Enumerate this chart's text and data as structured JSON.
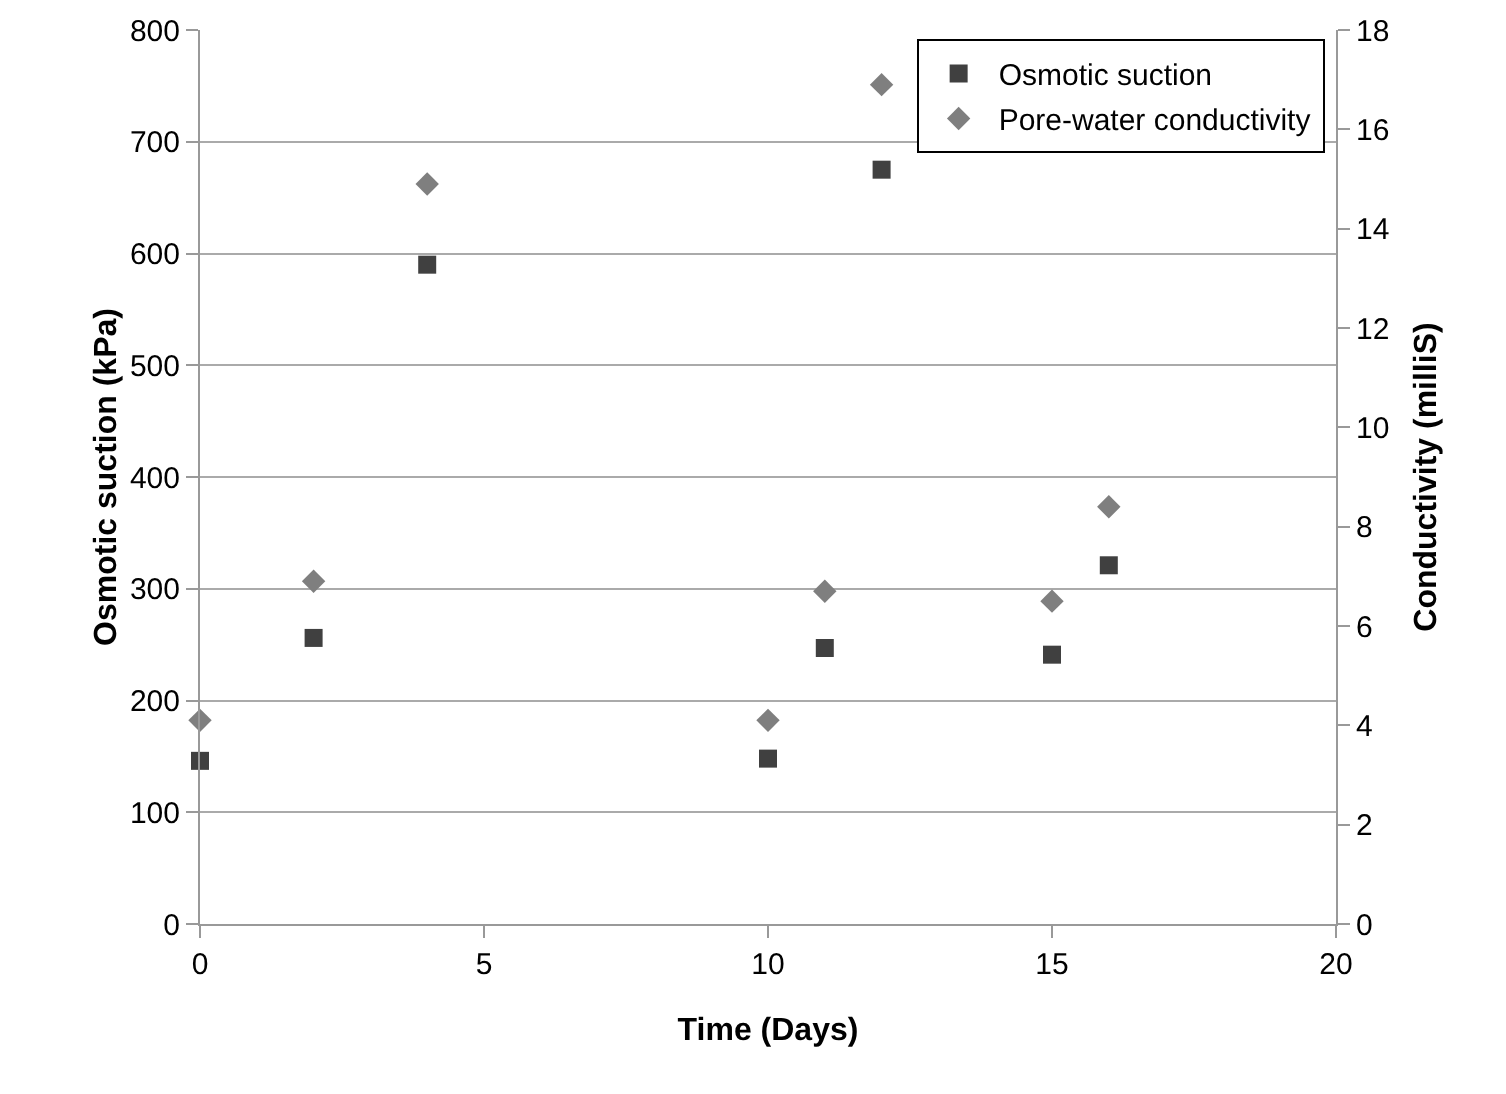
{
  "chart_data": {
    "type": "scatter",
    "xlabel": "Time (Days)",
    "ylabel": "Osmotic suction (kPa)",
    "y2label": "Conductivity (milliS)",
    "xlim": [
      0,
      20
    ],
    "xticks": [
      0,
      5,
      10,
      15,
      20
    ],
    "ylim": [
      0,
      800
    ],
    "yticks": [
      0,
      100,
      200,
      300,
      400,
      500,
      600,
      700,
      800
    ],
    "y2lim": [
      0,
      18
    ],
    "y2ticks": [
      0,
      2,
      4,
      6,
      8,
      10,
      12,
      14,
      16,
      18
    ],
    "grid": "y",
    "legend": "top right",
    "series": [
      {
        "name": "Osmotic suction",
        "color": "#404040",
        "marker": "square",
        "x": [
          0,
          2,
          4,
          10,
          11,
          12,
          15,
          16
        ],
        "values": [
          146,
          256,
          590,
          148,
          247,
          675,
          241,
          321
        ]
      },
      {
        "name": "Pore-water conductivity",
        "color": "#7f7f7f",
        "marker": "diamond",
        "axis": "y2",
        "x": [
          0,
          2,
          4,
          10,
          11,
          12,
          15,
          16
        ],
        "values": [
          4.1,
          6.9,
          14.9,
          4.1,
          6.7,
          16.9,
          6.5,
          8.4
        ]
      }
    ]
  }
}
